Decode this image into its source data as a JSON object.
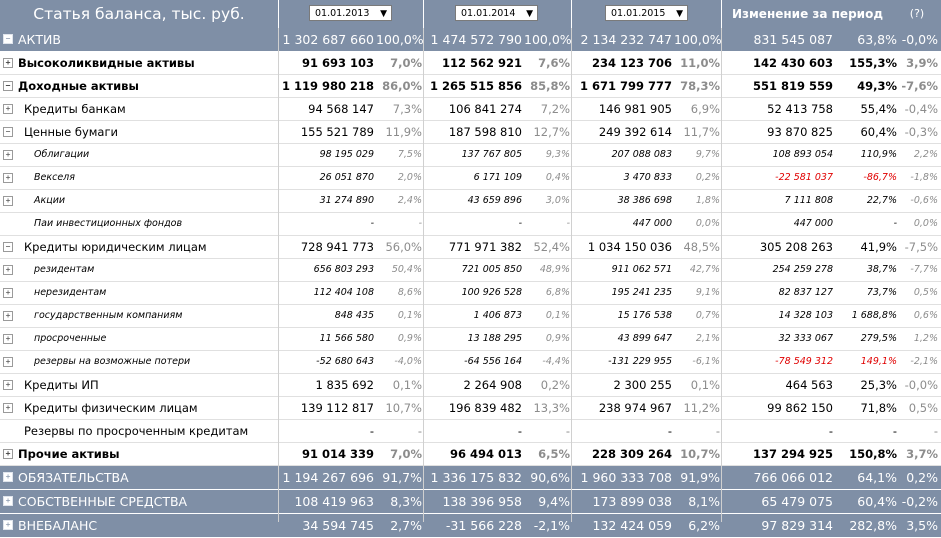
{
  "header": {
    "title": "Статья баланса, тыс. руб.",
    "dates": [
      "01.01.2013",
      "01.01.2014",
      "01.01.2015"
    ],
    "change": "Изменение за период",
    "help": "(?)"
  },
  "rows": [
    {
      "name": "АКТИВ",
      "level": 0,
      "toggle": "−",
      "a1": "1 302 687 660",
      "p1": "100,0%",
      "a2": "1 474 572 790",
      "p2": "100,0%",
      "a3": "2 134 232 747",
      "p3": "100,0%",
      "a4": "831 545 087",
      "p4": "63,8%",
      "p5": "-0,0%"
    },
    {
      "name": "Высоколиквидные активы",
      "level": 1,
      "toggle": "+",
      "a1": "91 693 103",
      "p1": "7,0%",
      "a2": "112 562 921",
      "p2": "7,6%",
      "a3": "234 123 706",
      "p3": "11,0%",
      "a4": "142 430 603",
      "p4": "155,3%",
      "p5": "3,9%"
    },
    {
      "name": "Доходные активы",
      "level": 1,
      "toggle": "−",
      "a1": "1 119 980 218",
      "p1": "86,0%",
      "a2": "1 265 515 856",
      "p2": "85,8%",
      "a3": "1 671 799 777",
      "p3": "78,3%",
      "a4": "551 819 559",
      "p4": "49,3%",
      "p5": "-7,6%"
    },
    {
      "name": "Кредиты банкам",
      "level": 2,
      "toggle": "+",
      "a1": "94 568 147",
      "p1": "7,3%",
      "a2": "106 841 274",
      "p2": "7,2%",
      "a3": "146 981 905",
      "p3": "6,9%",
      "a4": "52 413 758",
      "p4": "55,4%",
      "p5": "-0,4%"
    },
    {
      "name": "Ценные бумаги",
      "level": 2,
      "toggle": "−",
      "a1": "155 521 789",
      "p1": "11,9%",
      "a2": "187 598 810",
      "p2": "12,7%",
      "a3": "249 392 614",
      "p3": "11,7%",
      "a4": "93 870 825",
      "p4": "60,4%",
      "p5": "-0,3%"
    },
    {
      "name": "Облигации",
      "level": 3,
      "toggle": "+",
      "a1": "98 195 029",
      "p1": "7,5%",
      "a2": "137 767 805",
      "p2": "9,3%",
      "a3": "207 088 083",
      "p3": "9,7%",
      "a4": "108 893 054",
      "p4": "110,9%",
      "p5": "2,2%"
    },
    {
      "name": "Векселя",
      "level": 3,
      "toggle": "+",
      "a1": "26 051 870",
      "p1": "2,0%",
      "a2": "6 171 109",
      "p2": "0,4%",
      "a3": "3 470 833",
      "p3": "0,2%",
      "a4": "-22 581 037",
      "p4": "-86,7%",
      "p5": "-1,8%",
      "red": true
    },
    {
      "name": "Акции",
      "level": 3,
      "toggle": "+",
      "a1": "31 274 890",
      "p1": "2,4%",
      "a2": "43 659 896",
      "p2": "3,0%",
      "a3": "38 386 698",
      "p3": "1,8%",
      "a4": "7 111 808",
      "p4": "22,7%",
      "p5": "-0,6%"
    },
    {
      "name": "Паи инвестиционных фондов",
      "level": 3,
      "toggle": "",
      "a1": "-",
      "p1": "-",
      "a2": "-",
      "p2": "-",
      "a3": "447 000",
      "p3": "0,0%",
      "a4": "447 000",
      "p4": "-",
      "p5": "0,0%"
    },
    {
      "name": "Кредиты юридическим лицам",
      "level": 2,
      "toggle": "−",
      "a1": "728 941 773",
      "p1": "56,0%",
      "a2": "771 971 382",
      "p2": "52,4%",
      "a3": "1 034 150 036",
      "p3": "48,5%",
      "a4": "305 208 263",
      "p4": "41,9%",
      "p5": "-7,5%"
    },
    {
      "name": "резидентам",
      "level": 3,
      "toggle": "+",
      "a1": "656 803 293",
      "p1": "50,4%",
      "a2": "721 005 850",
      "p2": "48,9%",
      "a3": "911 062 571",
      "p3": "42,7%",
      "a4": "254 259 278",
      "p4": "38,7%",
      "p5": "-7,7%"
    },
    {
      "name": "нерезидентам",
      "level": 3,
      "toggle": "+",
      "a1": "112 404 108",
      "p1": "8,6%",
      "a2": "100 926 528",
      "p2": "6,8%",
      "a3": "195 241 235",
      "p3": "9,1%",
      "a4": "82 837 127",
      "p4": "73,7%",
      "p5": "0,5%"
    },
    {
      "name": "государственным компаниям",
      "level": 3,
      "toggle": "+",
      "a1": "848 435",
      "p1": "0,1%",
      "a2": "1 406 873",
      "p2": "0,1%",
      "a3": "15 176 538",
      "p3": "0,7%",
      "a4": "14 328 103",
      "p4": "1 688,8%",
      "p5": "0,6%"
    },
    {
      "name": "просроченные",
      "level": 3,
      "toggle": "+",
      "a1": "11 566 580",
      "p1": "0,9%",
      "a2": "13 188 295",
      "p2": "0,9%",
      "a3": "43 899 647",
      "p3": "2,1%",
      "a4": "32 333 067",
      "p4": "279,5%",
      "p5": "1,2%"
    },
    {
      "name": "резервы на возможные потери",
      "level": 3,
      "toggle": "+",
      "a1": "-52 680 643",
      "p1": "-4,0%",
      "a2": "-64 556 164",
      "p2": "-4,4%",
      "a3": "-131 229 955",
      "p3": "-6,1%",
      "a4": "-78 549 312",
      "p4": "149,1%",
      "p5": "-2,1%",
      "red": true
    },
    {
      "name": "Кредиты ИП",
      "level": 2,
      "toggle": "+",
      "a1": "1 835 692",
      "p1": "0,1%",
      "a2": "2 264 908",
      "p2": "0,2%",
      "a3": "2 300 255",
      "p3": "0,1%",
      "a4": "464 563",
      "p4": "25,3%",
      "p5": "-0,0%"
    },
    {
      "name": "Кредиты физическим лицам",
      "level": 2,
      "toggle": "+",
      "a1": "139 112 817",
      "p1": "10,7%",
      "a2": "196 839 482",
      "p2": "13,3%",
      "a3": "238 974 967",
      "p3": "11,2%",
      "a4": "99 862 150",
      "p4": "71,8%",
      "p5": "0,5%"
    },
    {
      "name": "Резервы по просроченным кредитам",
      "level": 2,
      "toggle": "",
      "a1": "-",
      "p1": "-",
      "a2": "-",
      "p2": "-",
      "a3": "-",
      "p3": "-",
      "a4": "-",
      "p4": "-",
      "p5": "-"
    },
    {
      "name": "Прочие активы",
      "level": 1,
      "toggle": "+",
      "a1": "91 014 339",
      "p1": "7,0%",
      "a2": "96 494 013",
      "p2": "6,5%",
      "a3": "228 309 264",
      "p3": "10,7%",
      "a4": "137 294 925",
      "p4": "150,8%",
      "p5": "3,7%"
    },
    {
      "name": "ОБЯЗАТЕЛЬСТВА",
      "level": 0,
      "toggle": "+",
      "a1": "1 194 267 696",
      "p1": "91,7%",
      "a2": "1 336 175 832",
      "p2": "90,6%",
      "a3": "1 960 333 708",
      "p3": "91,9%",
      "a4": "766 066 012",
      "p4": "64,1%",
      "p5": "0,2%"
    },
    {
      "name": "СОБСТВЕННЫЕ СРЕДСТВА",
      "level": 0,
      "toggle": "+",
      "a1": "108 419 963",
      "p1": "8,3%",
      "a2": "138 396 958",
      "p2": "9,4%",
      "a3": "173 899 038",
      "p3": "8,1%",
      "a4": "65 479 075",
      "p4": "60,4%",
      "p5": "-0,2%"
    },
    {
      "name": "ВНЕБАЛАНС",
      "level": 0,
      "toggle": "+",
      "a1": "34 594 745",
      "p1": "2,7%",
      "a2": "-31 566 228",
      "p2": "-2,1%",
      "a3": "132 424 059",
      "p3": "6,2%",
      "a4": "97 829 314",
      "p4": "282,8%",
      "p5": "3,5%"
    }
  ]
}
